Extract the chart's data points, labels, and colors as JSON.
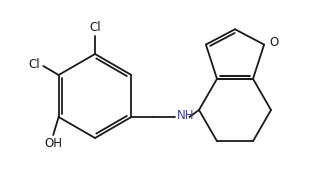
{
  "bg_color": "#ffffff",
  "line_color": "#1a1a1a",
  "text_color": "#1a1a1a",
  "nh_color": "#4040a0",
  "label_fontsize": 8.5,
  "bond_lw": 1.3,
  "dbi": 0.032,
  "figsize": [
    3.28,
    1.92
  ],
  "dpi": 100,
  "xlim": [
    0.0,
    3.28
  ],
  "ylim": [
    0.0,
    1.92
  ]
}
